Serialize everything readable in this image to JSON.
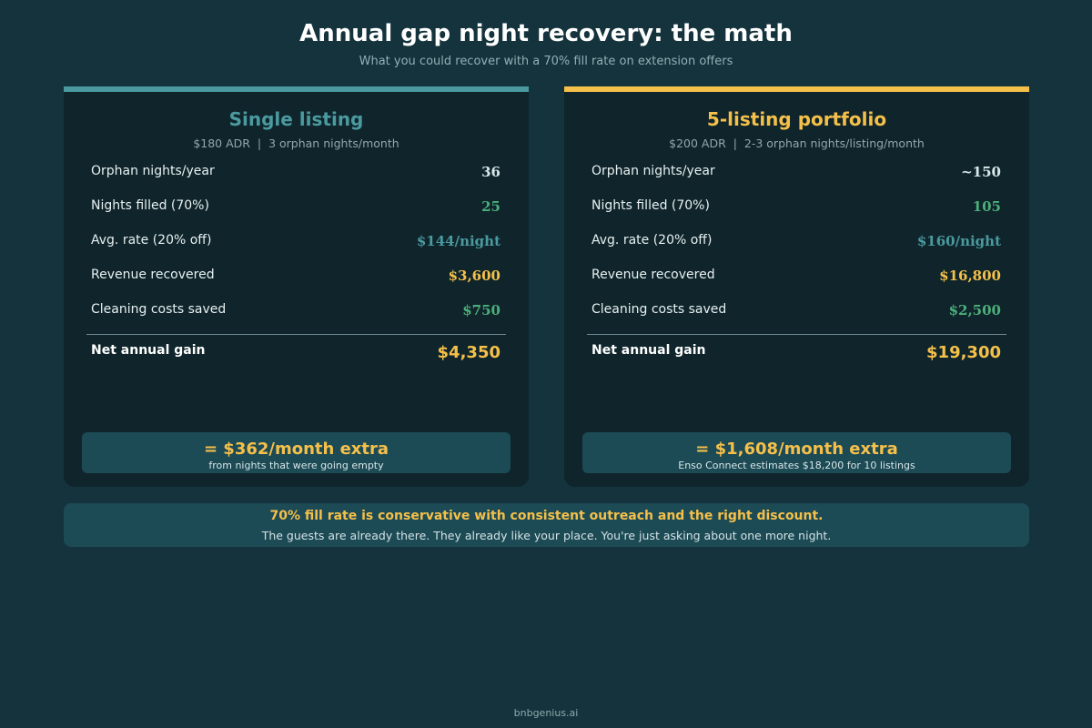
{
  "header": {
    "title": "Annual gap night recovery: the math",
    "subtitle": "What you could recover with a 70% fill rate on extension offers"
  },
  "cards": [
    {
      "title": "Single listing",
      "subtitle": "$180 ADR  |  3 orphan nights/month",
      "rows": [
        {
          "label": "Orphan nights/year",
          "value": "36"
        },
        {
          "label": "Nights filled (70%)",
          "value": "25"
        },
        {
          "label": "Avg. rate (20% off)",
          "value": "$144/night"
        },
        {
          "label": "Revenue recovered",
          "value": "$3,600"
        },
        {
          "label": "Cleaning costs saved",
          "value": "$750"
        }
      ],
      "net": {
        "label": "Net annual gain",
        "value": "$4,350"
      },
      "summary": {
        "headline": "= $362/month extra",
        "note": "from nights that were going empty"
      }
    },
    {
      "title": "5-listing portfolio",
      "subtitle": "$200 ADR  |  2-3 orphan nights/listing/month",
      "rows": [
        {
          "label": "Orphan nights/year",
          "value": "~150"
        },
        {
          "label": "Nights filled (70%)",
          "value": "105"
        },
        {
          "label": "Avg. rate (20% off)",
          "value": "$160/night"
        },
        {
          "label": "Revenue recovered",
          "value": "$16,800"
        },
        {
          "label": "Cleaning costs saved",
          "value": "$2,500"
        }
      ],
      "net": {
        "label": "Net annual gain",
        "value": "$19,300"
      },
      "summary": {
        "headline": "= $1,608/month extra",
        "note": "Enso Connect estimates $18,200 for 10 listings"
      }
    }
  ],
  "banner": {
    "headline": "70% fill rate is conservative with consistent outreach and the right discount.",
    "note": "The guests are already there. They already like your place. You're just asking about one more night."
  },
  "footer": "bnbgenius.ai"
}
